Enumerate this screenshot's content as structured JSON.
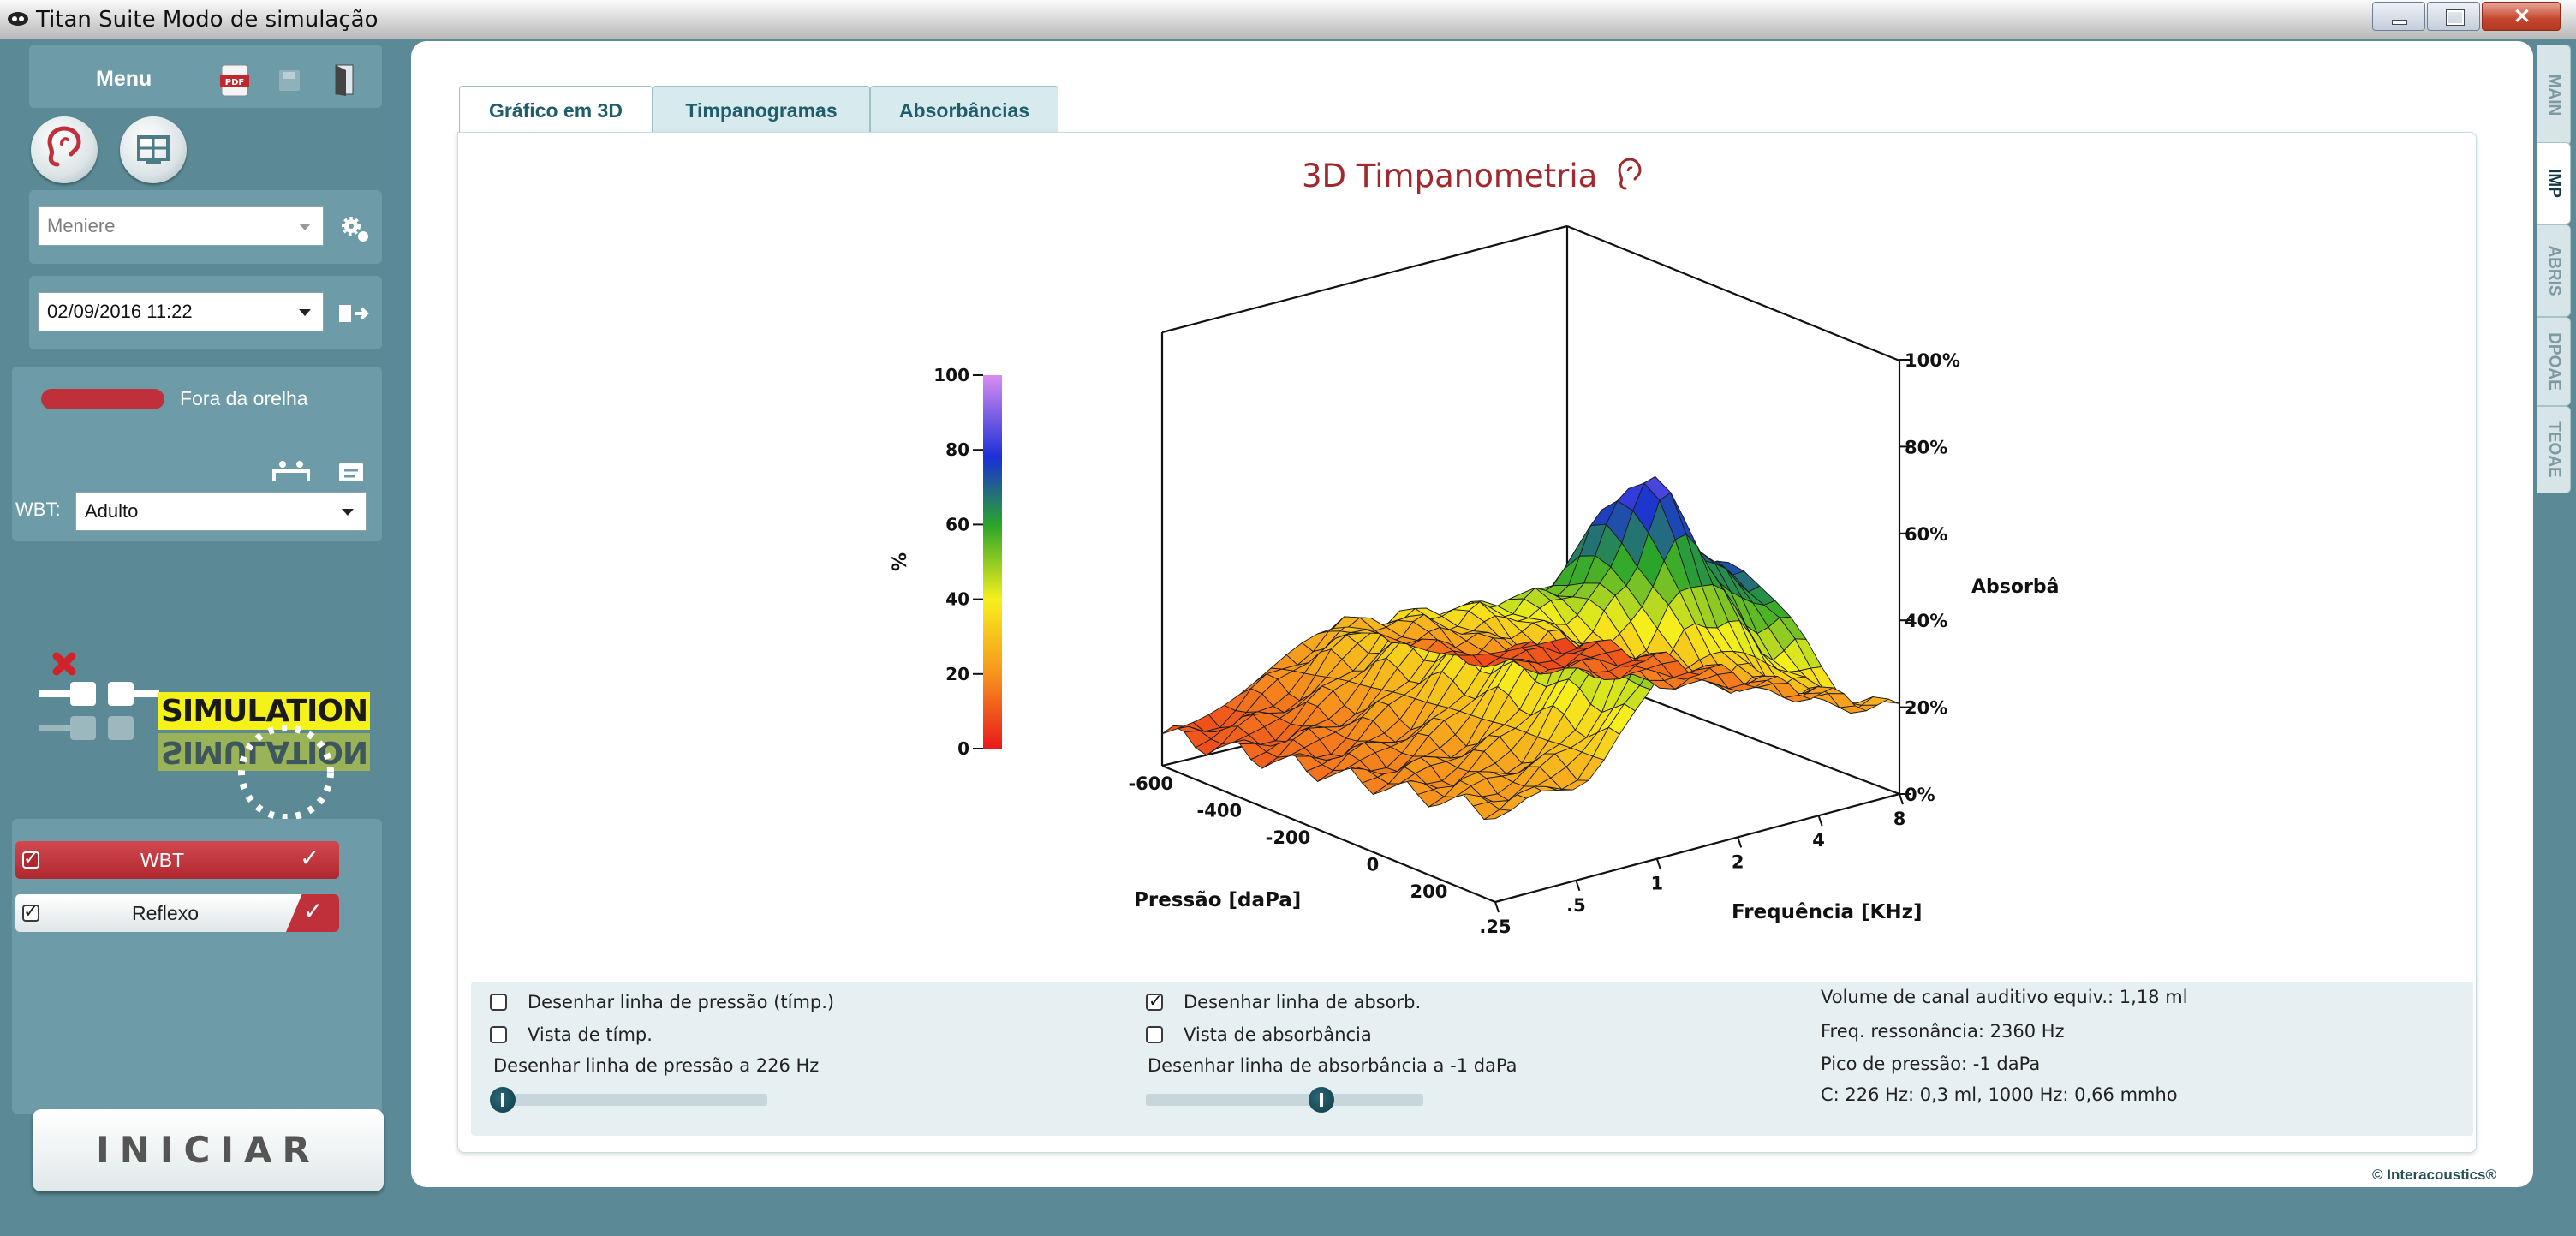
{
  "window": {
    "title": "Titan Suite Modo de simulação"
  },
  "sidebar": {
    "menu_label": "Menu",
    "protocol": {
      "value": "Meniere"
    },
    "session": {
      "value": "02/09/2016 11:22"
    },
    "probe_status": {
      "label": "Fora da orelha",
      "color": "#c0303a"
    },
    "wbt": {
      "label": "WBT:",
      "value": "Adulto"
    },
    "simulation": {
      "label": "SIMULATION",
      "mirror_label": "SIMULATION"
    },
    "tests": [
      {
        "label": "WBT",
        "checked": true,
        "active": true
      },
      {
        "label": "Reflexo",
        "checked": true,
        "active": false
      }
    ],
    "start_button": "INICIAR"
  },
  "tabs": [
    {
      "label": "Gráfico em 3D",
      "active": true
    },
    {
      "label": "Timpanogramas",
      "active": false
    },
    {
      "label": "Absorbâncias",
      "active": false
    }
  ],
  "side_tabs": [
    {
      "label": "MAIN",
      "active": false
    },
    {
      "label": "IMP",
      "active": true
    },
    {
      "label": "ABRIS",
      "active": false
    },
    {
      "label": "DPOAE",
      "active": false
    },
    {
      "label": "TEOAE",
      "active": false
    }
  ],
  "chart_data": {
    "type": "surface",
    "title": "3D Timpanometria",
    "colorbar": {
      "label": "%",
      "ticks": [
        "0",
        "20",
        "40",
        "60",
        "80",
        "100"
      ],
      "range": [
        0,
        100
      ]
    },
    "x_axis": {
      "label": "Pressão [daPa]",
      "ticks": [
        "-600",
        "-400",
        "-200",
        "0",
        "200"
      ],
      "range": [
        -600,
        200
      ]
    },
    "y_axis": {
      "label": "Frequência [KHz]",
      "ticks": [
        ".25",
        ".5",
        "1",
        "2",
        "4",
        "8"
      ],
      "range": [
        0.25,
        8
      ]
    },
    "z_axis": {
      "label": "Absorbâ",
      "ticks": [
        "0%",
        "20%",
        "40%",
        "60%",
        "80%",
        "100%"
      ],
      "range": [
        0,
        100
      ]
    }
  },
  "options": {
    "left": [
      {
        "label": "Desenhar linha de pressão (tímp.)",
        "checked": false
      },
      {
        "label": "Vista de tímp.",
        "checked": false
      }
    ],
    "left_slider_label": "Desenhar linha de pressão a 226 Hz",
    "left_slider_value": 0,
    "middle": [
      {
        "label": "Desenhar linha de absorb.",
        "checked": true
      },
      {
        "label": "Vista de absorbância",
        "checked": false
      }
    ],
    "middle_slider_label": "Desenhar linha de absorbância a -1 daPa",
    "middle_slider_value": 0.65
  },
  "results": [
    "Volume de canal auditivo equiv.: 1,18 ml",
    "Freq. ressonância: 2360 Hz",
    "Pico de pressão: -1 daPa",
    "C: 226 Hz: 0,3 ml, 1000 Hz: 0,66 mmho"
  ],
  "footer": {
    "copyright": "© Interacoustics®"
  }
}
